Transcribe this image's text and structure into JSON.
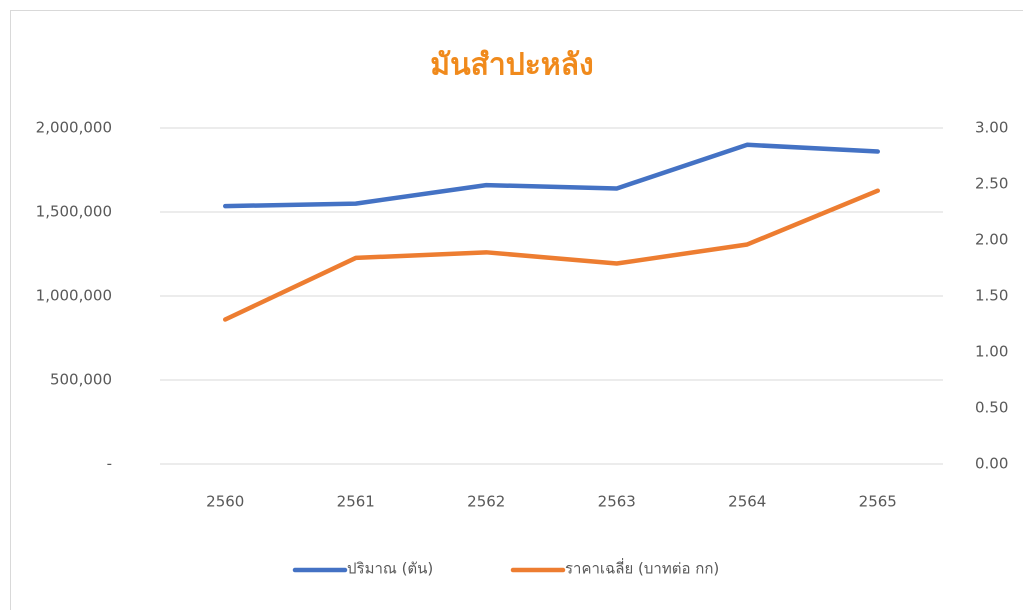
{
  "chart_data": {
    "type": "line",
    "title": "มันสำปะหลัง",
    "categories": [
      "2560",
      "2561",
      "2562",
      "2563",
      "2564",
      "2565"
    ],
    "series": [
      {
        "name": "ปริมาณ (ตัน)",
        "color": "#4472c4",
        "values": [
          1535000,
          1550000,
          1660000,
          1640000,
          1900000,
          1860000
        ]
      },
      {
        "name": "ราคาเฉลี่ย (บาทต่อ กก)",
        "color": "#ed7d31",
        "axis": "y2",
        "values": [
          1.29,
          1.84,
          1.89,
          1.79,
          1.96,
          2.44
        ]
      }
    ],
    "ylim": [
      0,
      2000000
    ],
    "yticks": [
      {
        "value": 0,
        "label": "-"
      },
      {
        "value": 500000,
        "label": "500,000"
      },
      {
        "value": 1000000,
        "label": "1,000,000"
      },
      {
        "value": 1500000,
        "label": "1,500,000"
      },
      {
        "value": 2000000,
        "label": "2,000,000"
      }
    ],
    "y2lim": [
      0,
      3
    ],
    "y2ticks": [
      {
        "value": 0,
        "label": "0.00"
      },
      {
        "value": 0.5,
        "label": "0.50"
      },
      {
        "value": 1,
        "label": "1.00"
      },
      {
        "value": 1.5,
        "label": "1.50"
      },
      {
        "value": 2,
        "label": "2.00"
      },
      {
        "value": 2.5,
        "label": "2.50"
      },
      {
        "value": 3,
        "label": "3.00"
      }
    ],
    "grid": true,
    "legend": "bottom"
  }
}
